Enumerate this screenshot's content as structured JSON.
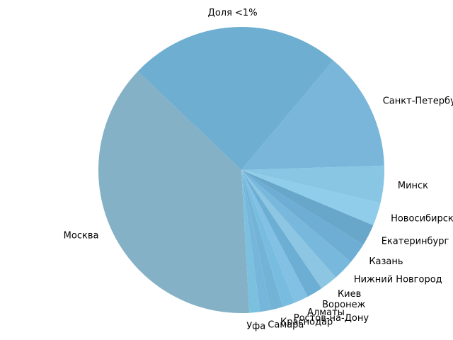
{
  "chart_data": {
    "type": "pie",
    "labels": [
      "Доля <1%",
      "Москва",
      "Уфа",
      "Самара",
      "Краснодар",
      "Ростов-на-Дону",
      "Алматы",
      "Воронеж",
      "Киев",
      "Нижний Новгород",
      "Казань",
      "Екатеринбург",
      "Новосибирск",
      "Минск",
      "Санкт-Петербург"
    ],
    "values": [
      24.0,
      38.0,
      1.2,
      1.2,
      1.4,
      1.4,
      1.6,
      1.8,
      2.0,
      2.4,
      2.4,
      2.4,
      2.6,
      4.2,
      13.4
    ],
    "colors": [
      "#6eaed1",
      "#84b1c6",
      "#7cc0e0",
      "#75b6da",
      "#73b4d6",
      "#78bde0",
      "#82c1e4",
      "#6caed4",
      "#8cc6e2",
      "#78b8dc",
      "#6eaed4",
      "#68a6ca",
      "#90cdea",
      "#88c6e4",
      "#79b6da"
    ],
    "start_angle_deg": 50,
    "direction": "counterclockwise"
  }
}
